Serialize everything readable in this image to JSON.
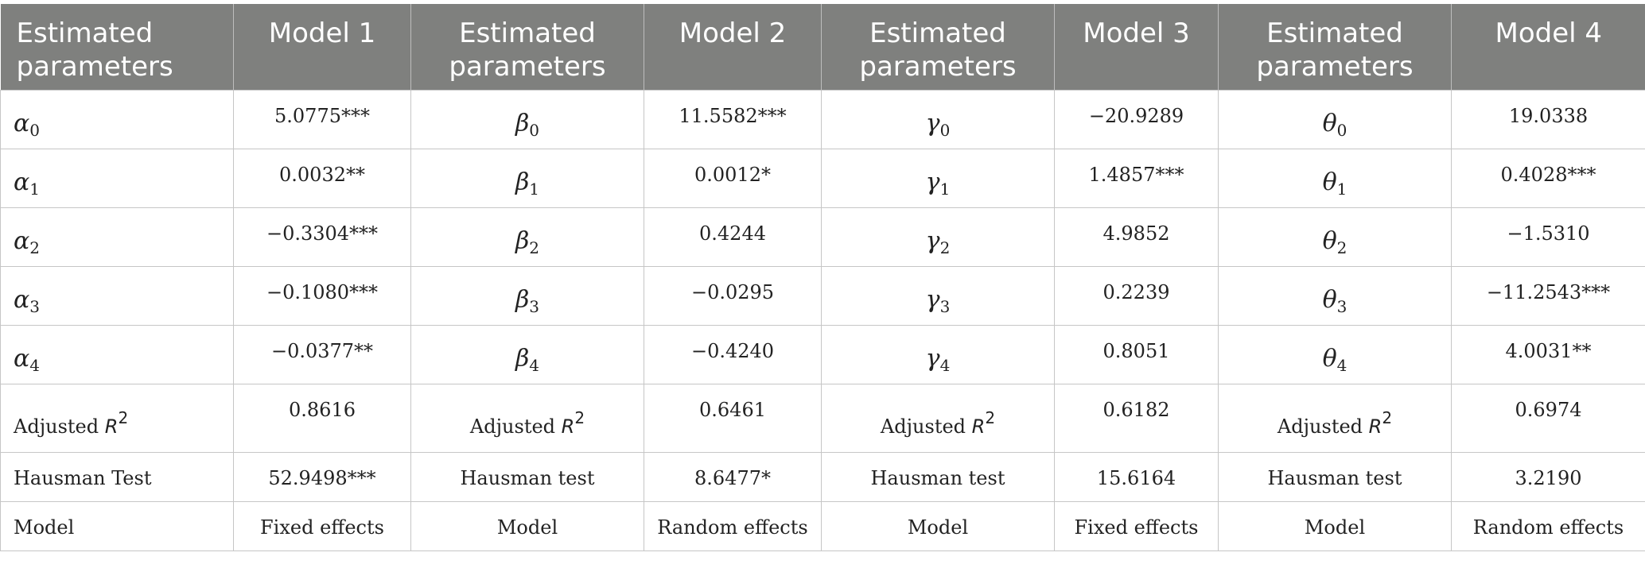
{
  "header": [
    "Estimated parameters",
    "Model 1",
    "Estimated parameters",
    "Model 2",
    "Estimated parameters",
    "Model 3",
    "Estimated parameters",
    "Model 4"
  ],
  "rows": [
    {
      "symbols": [
        {
          "base": "α",
          "sub": "0"
        },
        {
          "base": "β",
          "sub": "0"
        },
        {
          "base": "γ",
          "sub": "0"
        },
        {
          "base": "θ",
          "sub": "0"
        }
      ],
      "values": [
        "5.0775***",
        "11.5582***",
        "−20.9289",
        "19.0338"
      ]
    },
    {
      "symbols": [
        {
          "base": "α",
          "sub": "1"
        },
        {
          "base": "β",
          "sub": "1"
        },
        {
          "base": "γ",
          "sub": "1"
        },
        {
          "base": "θ",
          "sub": "1"
        }
      ],
      "values": [
        "0.0032**",
        "0.0012*",
        "1.4857***",
        "0.4028***"
      ]
    },
    {
      "symbols": [
        {
          "base": "α",
          "sub": "2"
        },
        {
          "base": "β",
          "sub": "2"
        },
        {
          "base": "γ",
          "sub": "2"
        },
        {
          "base": "θ",
          "sub": "2"
        }
      ],
      "values": [
        "−0.3304***",
        "0.4244",
        "4.9852",
        "−1.5310"
      ]
    },
    {
      "symbols": [
        {
          "base": "α",
          "sub": "3"
        },
        {
          "base": "β",
          "sub": "3"
        },
        {
          "base": "γ",
          "sub": "3"
        },
        {
          "base": "θ",
          "sub": "3"
        }
      ],
      "values": [
        "−0.1080***",
        "−0.0295",
        "0.2239",
        "−11.2543***"
      ]
    },
    {
      "symbols": [
        {
          "base": "α",
          "sub": "4"
        },
        {
          "base": "β",
          "sub": "4"
        },
        {
          "base": "γ",
          "sub": "4"
        },
        {
          "base": "θ",
          "sub": "4"
        }
      ],
      "values": [
        "−0.0377**",
        "−0.4240",
        "0.8051",
        "4.0031**"
      ]
    }
  ],
  "adjusted": {
    "label_text": "Adjusted ",
    "label_var": "R",
    "label_sup": "2",
    "values": [
      "0.8616",
      "0.6461",
      "0.6182",
      "0.6974"
    ]
  },
  "hausman": {
    "labels": [
      "Hausman Test",
      "Hausman test",
      "Hausman test",
      "Hausman test"
    ],
    "values": [
      "52.9498***",
      "8.6477*",
      "15.6164",
      "3.2190"
    ]
  },
  "model": {
    "labels": [
      "Model",
      "Model",
      "Model",
      "Model"
    ],
    "values": [
      "Fixed effects",
      "Random effects",
      "Fixed effects",
      "Random effects"
    ]
  }
}
